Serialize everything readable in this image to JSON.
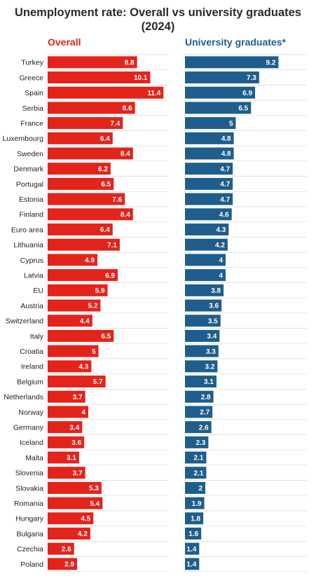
{
  "title_line1": "Unemployment rate: Overall vs university graduates",
  "title_line2": "(2024)",
  "colors": {
    "overall": "#e3241b",
    "graduates": "#1f5e8c",
    "grid": "#d9d9d9"
  },
  "chart_data": {
    "type": "bar",
    "orientation": "horizontal",
    "grid": true,
    "categories": [
      "Turkey",
      "Greece",
      "Spain",
      "Serbia",
      "France",
      "Luxembourg",
      "Sweden",
      "Denmark",
      "Portugal",
      "Estonia",
      "Finland",
      "Euro area",
      "Lithuania",
      "Cyprus",
      "Latvia",
      "EU",
      "Austria",
      "Switzerland",
      "Italy",
      "Croatia",
      "Ireland",
      "Belgium",
      "Netherlands",
      "Norway",
      "Germany",
      "Iceland",
      "Malta",
      "Slovenia",
      "Slovakia",
      "Romania",
      "Hungary",
      "Bulgaria",
      "Czechia",
      "Poland"
    ],
    "series": [
      {
        "name": "Overall",
        "values": [
          8.8,
          10.1,
          11.4,
          8.6,
          7.4,
          6.4,
          8.4,
          6.2,
          6.5,
          7.6,
          8.4,
          6.4,
          7.1,
          4.9,
          6.9,
          5.9,
          5.2,
          4.4,
          6.5,
          5,
          4.3,
          5.7,
          3.7,
          4,
          3.4,
          3.6,
          3.1,
          3.7,
          5.3,
          5.4,
          4.5,
          4.2,
          2.6,
          2.9
        ]
      },
      {
        "name": "University graduates*",
        "values": [
          9.2,
          7.3,
          6.9,
          6.5,
          5,
          4.8,
          4.8,
          4.7,
          4.7,
          4.7,
          4.6,
          4.3,
          4.2,
          4,
          4,
          3.8,
          3.6,
          3.5,
          3.4,
          3.3,
          3.2,
          3.1,
          2.8,
          2.7,
          2.6,
          2.3,
          2.1,
          2.1,
          2,
          1.9,
          1.8,
          1.6,
          1.4,
          1.4
        ]
      }
    ]
  }
}
